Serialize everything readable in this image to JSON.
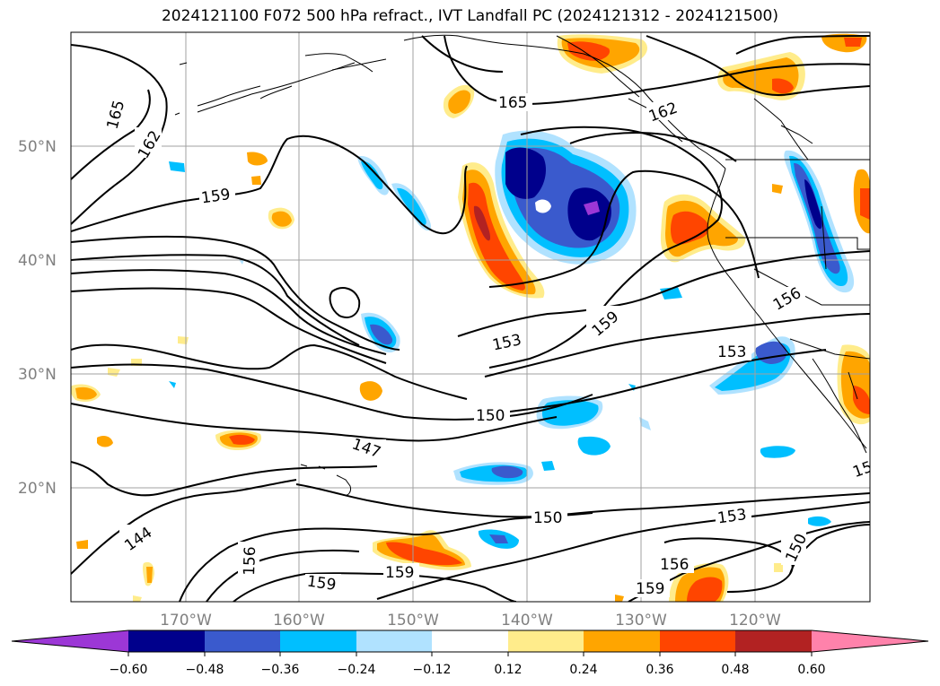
{
  "title": "2024121100 F072 500 hPa refract., IVT Landfall PC (2024121312 - 2024121500)",
  "map": {
    "lat_labels": [
      "50°N",
      "40°N",
      "30°N",
      "20°N"
    ],
    "lon_labels": [
      "170°W",
      "160°W",
      "150°W",
      "140°W",
      "130°W",
      "120°W"
    ],
    "contour_labels": [
      "165",
      "162",
      "159",
      "165",
      "162",
      "159",
      "153",
      "153",
      "156",
      "150",
      "147",
      "144",
      "156",
      "159",
      "159",
      "150",
      "153",
      "156",
      "159",
      "150",
      "15"
    ],
    "coastline_color": "#000000",
    "contour_color": "#000000",
    "grid_color": "#a0a0a0"
  },
  "colorbar": {
    "colors": [
      "#9c37d6",
      "#00008c",
      "#3a5acd",
      "#00bfff",
      "#b0e2ff",
      "#ffffff",
      "#ffec8b",
      "#ffa500",
      "#ff4500",
      "#b22222",
      "#ff82ab"
    ],
    "tick_labels": [
      "−0.60",
      "−0.48",
      "−0.36",
      "−0.24",
      "−0.12",
      "0.12",
      "0.24",
      "0.36",
      "0.48",
      "0.60"
    ]
  }
}
